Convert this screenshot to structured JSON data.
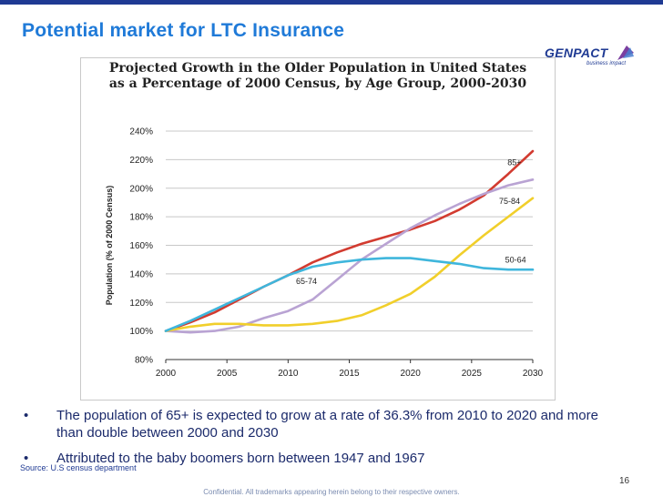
{
  "slide": {
    "title": "Potential market for LTC Insurance",
    "logo_name": "GENPACT",
    "logo_tagline": "business impact",
    "bullets": [
      "The population of 65+ is expected to grow at a rate of 36.3% from 2010 to 2020 and more than double between 2000 and 2030",
      "Attributed to the baby boomers born between 1947 and 1967"
    ],
    "bullet_symbol": "•",
    "source": "Source: U.S census department",
    "page_number": "16",
    "footer": "Confidential.  All trademarks appearing herein belong to their respective owners."
  },
  "chart_data": {
    "type": "line",
    "title_line1": "Projected Growth in the Older Population in United States",
    "title_line2": "as a Percentage of 2000 Census, by Age Group, 2000-2030",
    "xlabel": "",
    "ylabel": "Population (% of 2000 Census)",
    "x_ticks": [
      "2000",
      "2005",
      "2010",
      "2015",
      "2020",
      "2025",
      "2030"
    ],
    "y_ticks": [
      "80%",
      "100%",
      "120%",
      "140%",
      "160%",
      "180%",
      "200%",
      "220%",
      "240%"
    ],
    "xlim": [
      2000,
      2030
    ],
    "ylim": [
      80,
      240
    ],
    "grid": "horizontal",
    "series": [
      {
        "name": "85+",
        "color": "#d23b30",
        "x": [
          2000,
          2002,
          2004,
          2006,
          2008,
          2010,
          2012,
          2014,
          2016,
          2018,
          2020,
          2022,
          2024,
          2026,
          2028,
          2030
        ],
        "values": [
          100,
          106,
          113,
          122,
          131,
          139,
          148,
          155,
          161,
          166,
          171,
          177,
          185,
          195,
          210,
          226
        ]
      },
      {
        "name": "75-84",
        "color": "#b9a3d3",
        "x": [
          2000,
          2002,
          2004,
          2006,
          2008,
          2010,
          2012,
          2014,
          2016,
          2018,
          2020,
          2022,
          2024,
          2026,
          2028,
          2030
        ],
        "values": [
          100,
          99,
          100,
          103,
          109,
          114,
          122,
          136,
          150,
          161,
          172,
          181,
          189,
          196,
          202,
          206
        ]
      },
      {
        "name": "65-74",
        "color": "#f1cf2b",
        "x": [
          2000,
          2002,
          2004,
          2006,
          2008,
          2010,
          2012,
          2014,
          2016,
          2018,
          2020,
          2022,
          2024,
          2026,
          2028,
          2030
        ],
        "values": [
          100,
          103,
          105,
          105,
          104,
          104,
          105,
          107,
          111,
          118,
          126,
          138,
          153,
          167,
          180,
          193
        ]
      },
      {
        "name": "50-64",
        "color": "#3fb6dc",
        "x": [
          2000,
          2002,
          2004,
          2006,
          2008,
          2010,
          2012,
          2014,
          2016,
          2018,
          2020,
          2022,
          2024,
          2026,
          2028,
          2030
        ],
        "values": [
          100,
          107,
          115,
          123,
          131,
          139,
          145,
          148,
          150,
          151,
          151,
          149,
          147,
          144,
          143,
          143
        ]
      }
    ]
  }
}
